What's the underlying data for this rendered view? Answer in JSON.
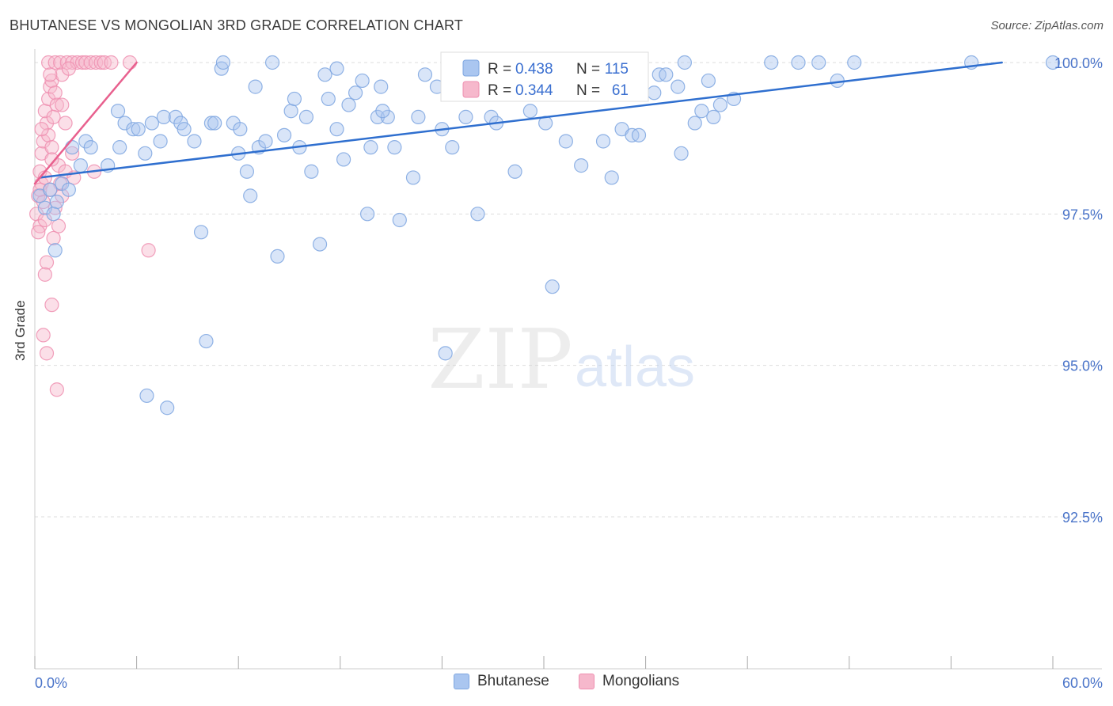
{
  "header": {
    "title": "BHUTANESE VS MONGOLIAN 3RD GRADE CORRELATION CHART",
    "source": "Source: ZipAtlas.com"
  },
  "watermark": {
    "zip": "ZIP",
    "atlas": "atlas"
  },
  "legend": {
    "rows": [
      {
        "r_label": "R =",
        "r_value": "0.438",
        "n_label": "N =",
        "n_value": "115"
      },
      {
        "r_label": "R =",
        "r_value": "0.344",
        "n_label": "N =",
        "n_value": "61"
      }
    ]
  },
  "bottom_legend": {
    "bhutanese": "Bhutanese",
    "mongolians": "Mongolians"
  },
  "colors": {
    "blue_fill": "#aac6f0",
    "blue_stroke": "#7ea6e0",
    "blue_line": "#2f6fcf",
    "pink_fill": "#f6b8cc",
    "pink_stroke": "#ee8fb0",
    "pink_line": "#e8608e",
    "accent_text": "#3a6fd0",
    "grid": "#dddddd"
  },
  "chart_data": {
    "type": "scatter",
    "title": "BHUTANESE VS MONGOLIAN 3RD GRADE CORRELATION CHART",
    "xlabel": "",
    "ylabel": "3rd Grade",
    "xlim": [
      0,
      60
    ],
    "ylim": [
      90.0,
      100.5
    ],
    "x_tick_labels": [
      "0.0%",
      "60.0%"
    ],
    "y_ticks": [
      92.5,
      95.0,
      97.5,
      100.0
    ],
    "y_tick_labels": [
      "92.5%",
      "95.0%",
      "97.5%",
      "100.0%"
    ],
    "grid": true,
    "series": [
      {
        "name": "Bhutanese",
        "r": 0.438,
        "n": 115,
        "trend": {
          "x": [
            0.3,
            57.0
          ],
          "y": [
            98.1,
            100.0
          ]
        },
        "points": [
          [
            0.3,
            97.8
          ],
          [
            0.6,
            97.6
          ],
          [
            0.9,
            97.9
          ],
          [
            1.3,
            97.7
          ],
          [
            1.1,
            97.5
          ],
          [
            1.6,
            98.0
          ],
          [
            2.0,
            97.9
          ],
          [
            2.2,
            98.6
          ],
          [
            3.0,
            98.7
          ],
          [
            3.3,
            98.6
          ],
          [
            2.7,
            98.3
          ],
          [
            4.3,
            98.3
          ],
          [
            5.0,
            98.6
          ],
          [
            4.9,
            99.2
          ],
          [
            5.3,
            99.0
          ],
          [
            5.8,
            98.9
          ],
          [
            6.1,
            98.9
          ],
          [
            6.5,
            98.5
          ],
          [
            6.9,
            99.0
          ],
          [
            7.4,
            98.7
          ],
          [
            7.6,
            99.1
          ],
          [
            8.3,
            99.1
          ],
          [
            8.6,
            99.0
          ],
          [
            8.8,
            98.9
          ],
          [
            9.4,
            98.7
          ],
          [
            9.8,
            97.2
          ],
          [
            10.1,
            95.4
          ],
          [
            10.4,
            99.0
          ],
          [
            10.6,
            99.0
          ],
          [
            11.0,
            99.9
          ],
          [
            11.1,
            100.0
          ],
          [
            11.7,
            99.0
          ],
          [
            12.0,
            98.5
          ],
          [
            12.1,
            98.9
          ],
          [
            12.5,
            98.2
          ],
          [
            12.7,
            97.8
          ],
          [
            13.0,
            99.6
          ],
          [
            13.2,
            98.6
          ],
          [
            13.6,
            98.7
          ],
          [
            14.0,
            100.0
          ],
          [
            14.3,
            96.8
          ],
          [
            14.7,
            98.8
          ],
          [
            15.1,
            99.2
          ],
          [
            15.3,
            99.4
          ],
          [
            15.6,
            98.6
          ],
          [
            16.0,
            99.1
          ],
          [
            16.3,
            98.2
          ],
          [
            16.8,
            97.0
          ],
          [
            17.1,
            99.8
          ],
          [
            17.3,
            99.4
          ],
          [
            17.8,
            98.9
          ],
          [
            18.2,
            98.4
          ],
          [
            18.5,
            99.3
          ],
          [
            18.9,
            99.5
          ],
          [
            19.3,
            99.7
          ],
          [
            19.6,
            97.5
          ],
          [
            19.8,
            98.6
          ],
          [
            20.2,
            99.1
          ],
          [
            20.8,
            99.1
          ],
          [
            20.5,
            99.2
          ],
          [
            21.2,
            98.6
          ],
          [
            21.5,
            97.4
          ],
          [
            22.3,
            98.1
          ],
          [
            22.6,
            99.1
          ],
          [
            23.0,
            99.8
          ],
          [
            23.7,
            99.6
          ],
          [
            24.0,
            98.9
          ],
          [
            24.2,
            95.2
          ],
          [
            24.6,
            98.6
          ],
          [
            25.4,
            99.1
          ],
          [
            26.0,
            100.0
          ],
          [
            26.1,
            97.5
          ],
          [
            26.9,
            99.1
          ],
          [
            27.2,
            99.0
          ],
          [
            27.8,
            99.5
          ],
          [
            28.3,
            98.2
          ],
          [
            28.8,
            99.7
          ],
          [
            29.2,
            99.2
          ],
          [
            30.1,
            99.0
          ],
          [
            30.5,
            96.3
          ],
          [
            30.8,
            99.6
          ],
          [
            31.3,
            98.7
          ],
          [
            31.6,
            100.0
          ],
          [
            32.2,
            98.3
          ],
          [
            33.0,
            100.0
          ],
          [
            33.5,
            98.7
          ],
          [
            33.7,
            99.7
          ],
          [
            34.0,
            98.1
          ],
          [
            34.6,
            98.9
          ],
          [
            35.2,
            98.8
          ],
          [
            35.6,
            98.8
          ],
          [
            36.5,
            99.5
          ],
          [
            36.8,
            99.8
          ],
          [
            37.2,
            99.8
          ],
          [
            37.9,
            99.6
          ],
          [
            38.1,
            98.5
          ],
          [
            38.3,
            100.0
          ],
          [
            38.9,
            99.0
          ],
          [
            39.3,
            99.2
          ],
          [
            39.7,
            99.7
          ],
          [
            40.0,
            99.1
          ],
          [
            40.4,
            99.3
          ],
          [
            41.2,
            99.4
          ],
          [
            43.4,
            100.0
          ],
          [
            45.0,
            100.0
          ],
          [
            46.2,
            100.0
          ],
          [
            47.3,
            99.7
          ],
          [
            48.3,
            100.0
          ],
          [
            55.2,
            100.0
          ],
          [
            60.0,
            100.0
          ],
          [
            17.8,
            99.9
          ],
          [
            24.8,
            100.0
          ],
          [
            1.2,
            96.9
          ],
          [
            6.6,
            94.5
          ],
          [
            7.8,
            94.3
          ],
          [
            20.4,
            99.6
          ]
        ]
      },
      {
        "name": "Mongolians",
        "r": 0.344,
        "n": 61,
        "trend": {
          "x": [
            0.0,
            6.0
          ],
          "y": [
            98.0,
            100.0
          ]
        },
        "points": [
          [
            0.2,
            97.8
          ],
          [
            0.4,
            98.0
          ],
          [
            0.3,
            98.2
          ],
          [
            0.5,
            97.7
          ],
          [
            0.1,
            97.5
          ],
          [
            0.3,
            97.3
          ],
          [
            0.2,
            97.2
          ],
          [
            0.6,
            97.4
          ],
          [
            0.4,
            98.5
          ],
          [
            0.5,
            98.7
          ],
          [
            0.7,
            99.0
          ],
          [
            0.6,
            99.2
          ],
          [
            0.8,
            99.4
          ],
          [
            0.9,
            99.6
          ],
          [
            1.0,
            99.7
          ],
          [
            1.2,
            99.5
          ],
          [
            1.3,
            99.3
          ],
          [
            1.1,
            99.1
          ],
          [
            0.8,
            98.8
          ],
          [
            1.0,
            98.6
          ],
          [
            1.4,
            98.3
          ],
          [
            1.5,
            98.0
          ],
          [
            1.6,
            97.8
          ],
          [
            1.2,
            97.6
          ],
          [
            1.4,
            97.3
          ],
          [
            1.1,
            97.1
          ],
          [
            0.7,
            96.7
          ],
          [
            0.6,
            96.5
          ],
          [
            1.0,
            96.0
          ],
          [
            0.5,
            95.5
          ],
          [
            0.7,
            95.2
          ],
          [
            1.3,
            94.6
          ],
          [
            0.8,
            100.0
          ],
          [
            1.2,
            100.0
          ],
          [
            1.5,
            100.0
          ],
          [
            1.9,
            100.0
          ],
          [
            2.2,
            100.0
          ],
          [
            2.5,
            100.0
          ],
          [
            2.8,
            100.0
          ],
          [
            3.0,
            100.0
          ],
          [
            3.3,
            100.0
          ],
          [
            3.6,
            100.0
          ],
          [
            3.9,
            100.0
          ],
          [
            4.1,
            100.0
          ],
          [
            4.5,
            100.0
          ],
          [
            5.6,
            100.0
          ],
          [
            1.6,
            99.8
          ],
          [
            1.8,
            99.0
          ],
          [
            2.2,
            98.5
          ],
          [
            1.8,
            98.2
          ],
          [
            2.3,
            98.1
          ],
          [
            3.5,
            98.2
          ],
          [
            6.7,
            96.9
          ],
          [
            0.3,
            97.9
          ],
          [
            0.6,
            98.1
          ],
          [
            0.9,
            97.9
          ],
          [
            1.0,
            98.4
          ],
          [
            0.4,
            98.9
          ],
          [
            1.6,
            99.3
          ],
          [
            2.0,
            99.9
          ],
          [
            0.9,
            99.8
          ]
        ]
      }
    ]
  }
}
